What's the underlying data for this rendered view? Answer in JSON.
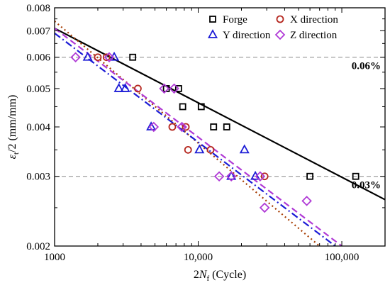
{
  "chart_data": {
    "type": "scatter",
    "xlabel": {
      "prefix": "2",
      "var": "N",
      "sub": "f",
      "suffix": " (Cycle)"
    },
    "ylabel": {
      "var": "ε",
      "sub": "t",
      "suffix": "/2 (mm/mm)"
    },
    "x_scale": "log",
    "y_scale": "log",
    "xlim": [
      1000,
      200000
    ],
    "ylim": [
      0.002,
      0.008
    ],
    "x_ticks": [
      {
        "value": 1000,
        "label": "1000"
      },
      {
        "value": 10000,
        "label": "10,000"
      },
      {
        "value": 100000,
        "label": "100,000"
      }
    ],
    "y_ticks": [
      {
        "value": 0.002,
        "label": "0.002"
      },
      {
        "value": 0.003,
        "label": "0.003"
      },
      {
        "value": 0.004,
        "label": "0.004"
      },
      {
        "value": 0.005,
        "label": "0.005"
      },
      {
        "value": 0.006,
        "label": "0.006"
      },
      {
        "value": 0.007,
        "label": "0.007"
      },
      {
        "value": 0.008,
        "label": "0.008"
      }
    ],
    "grid": false,
    "legend_position": "top-right",
    "reference_lines": [
      {
        "y": 0.006,
        "label": "0.06%",
        "color": "#888888"
      },
      {
        "y": 0.003,
        "label": "0.03%",
        "color": "#888888"
      }
    ],
    "series": [
      {
        "name": "Forge",
        "marker": "square",
        "color": "#000000",
        "points": [
          [
            3500,
            0.006
          ],
          [
            6000,
            0.005
          ],
          [
            7300,
            0.005
          ],
          [
            7800,
            0.0045
          ],
          [
            10500,
            0.0045
          ],
          [
            12800,
            0.004
          ],
          [
            15800,
            0.004
          ],
          [
            60000,
            0.003
          ],
          [
            125000,
            0.003
          ]
        ],
        "fit": {
          "color": "#000000",
          "dash": "solid",
          "from": [
            1000,
            0.0071
          ],
          "to": [
            200000,
            0.00262
          ]
        }
      },
      {
        "name": "X direction",
        "marker": "circle",
        "color": "#b5261e",
        "points": [
          [
            2000,
            0.006
          ],
          [
            2300,
            0.006
          ],
          [
            3800,
            0.005
          ],
          [
            6600,
            0.004
          ],
          [
            8200,
            0.004
          ],
          [
            8500,
            0.0035
          ],
          [
            12200,
            0.0035
          ],
          [
            29000,
            0.003
          ]
        ],
        "fit": {
          "color": "#a63b00",
          "dash": "dot",
          "from": [
            1000,
            0.0074
          ],
          "to": [
            70000,
            0.002
          ]
        }
      },
      {
        "name": "Y direction",
        "marker": "triangle",
        "color": "#1c1cd6",
        "points": [
          [
            1700,
            0.006
          ],
          [
            2600,
            0.006
          ],
          [
            2800,
            0.005
          ],
          [
            3100,
            0.005
          ],
          [
            4700,
            0.004
          ],
          [
            10200,
            0.0035
          ],
          [
            17000,
            0.003
          ],
          [
            21000,
            0.0035
          ],
          [
            25000,
            0.003
          ]
        ],
        "fit": {
          "color": "#1c1cd6",
          "dash": "dashdot",
          "from": [
            1000,
            0.0069
          ],
          "to": [
            90000,
            0.002
          ]
        }
      },
      {
        "name": "Z direction",
        "marker": "diamond",
        "color": "#b03ad6",
        "points": [
          [
            1400,
            0.006
          ],
          [
            2400,
            0.006
          ],
          [
            4900,
            0.004
          ],
          [
            5800,
            0.005
          ],
          [
            6800,
            0.005
          ],
          [
            7700,
            0.004
          ],
          [
            14000,
            0.003
          ],
          [
            17000,
            0.003
          ],
          [
            27000,
            0.003
          ],
          [
            29000,
            0.0025
          ],
          [
            57000,
            0.0026
          ]
        ],
        "fit": {
          "color": "#b03ad6",
          "dash": "dash",
          "from": [
            1000,
            0.0071
          ],
          "to": [
            100000,
            0.002
          ]
        }
      }
    ]
  }
}
